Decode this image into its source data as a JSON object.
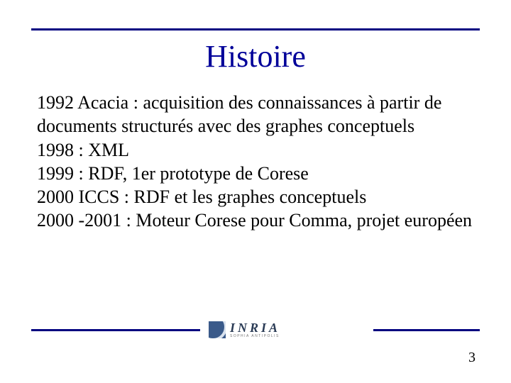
{
  "colors": {
    "rule": "#000080",
    "title": "#000099",
    "body_text": "#000000",
    "background": "#ffffff",
    "logo_bg": "#3a5a8a",
    "logo_text": "#2a3b55"
  },
  "typography": {
    "title_fontsize": 44,
    "body_fontsize": 26,
    "pagenum_fontsize": 20,
    "font_family": "Times New Roman"
  },
  "title": "Histoire",
  "body_lines": [
    "1992 Acacia : acquisition des connaissances à partir de documents structurés avec des graphes conceptuels",
    "1998 : XML",
    "1999 : RDF, 1er prototype de Corese",
    "2000  ICCS : RDF et les graphes conceptuels",
    "2000 -2001 : Moteur Corese pour Comma, projet européen"
  ],
  "logo": {
    "main": "INRIA",
    "sub": "SOPHIA ANTIPOLIS"
  },
  "page_number": "3"
}
